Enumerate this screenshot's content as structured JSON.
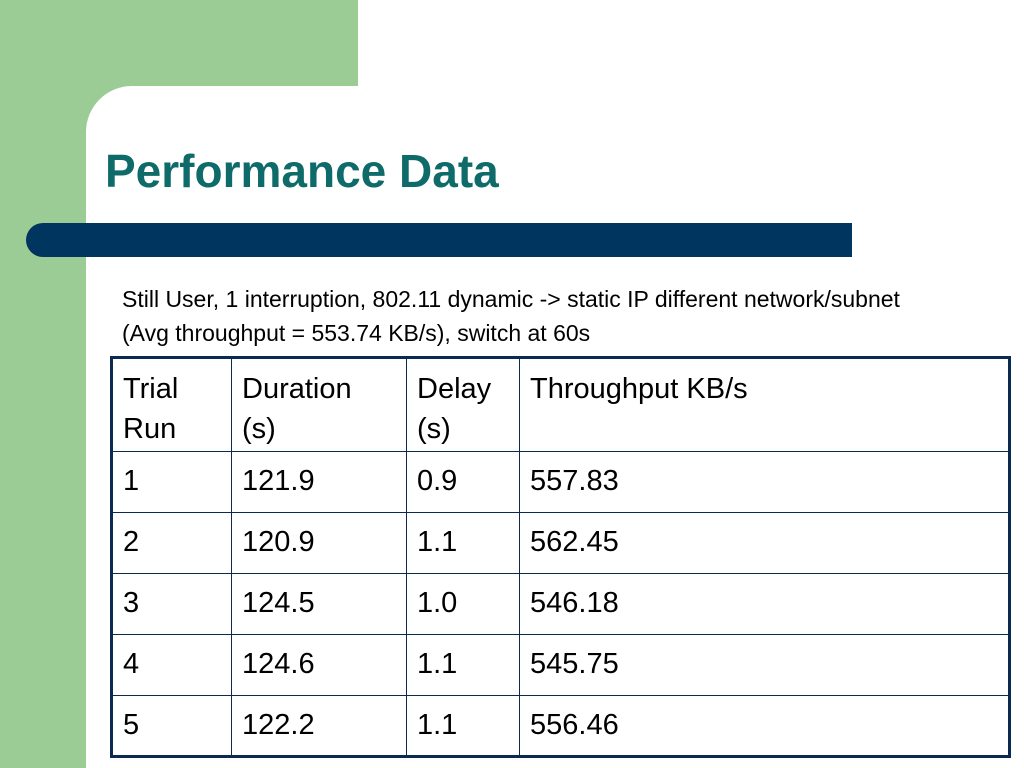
{
  "slide": {
    "title": "Performance Data",
    "subtitle": "Still User, 1 interruption, 802.11 dynamic -> static IP different network/subnet (Avg throughput = 553.74 KB/s), switch at 60s",
    "colors": {
      "background_green": "#9ccc95",
      "title_teal": "#0f6b6a",
      "bar_navy": "#00355f",
      "table_border": "#0a2a4f"
    }
  },
  "table": {
    "headers": [
      [
        "Trial",
        "Run"
      ],
      [
        "Duration",
        "(s)"
      ],
      [
        "Delay",
        "(s)"
      ],
      [
        "Throughput KB/s"
      ]
    ],
    "rows": [
      [
        "1",
        "121.9",
        "0.9",
        "557.83"
      ],
      [
        "2",
        "120.9",
        "1.1",
        "562.45"
      ],
      [
        "3",
        "124.5",
        "1.0",
        "546.18"
      ],
      [
        "4",
        "124.6",
        "1.1",
        "545.75"
      ],
      [
        "5",
        "122.2",
        "1.1",
        "556.46"
      ]
    ]
  }
}
